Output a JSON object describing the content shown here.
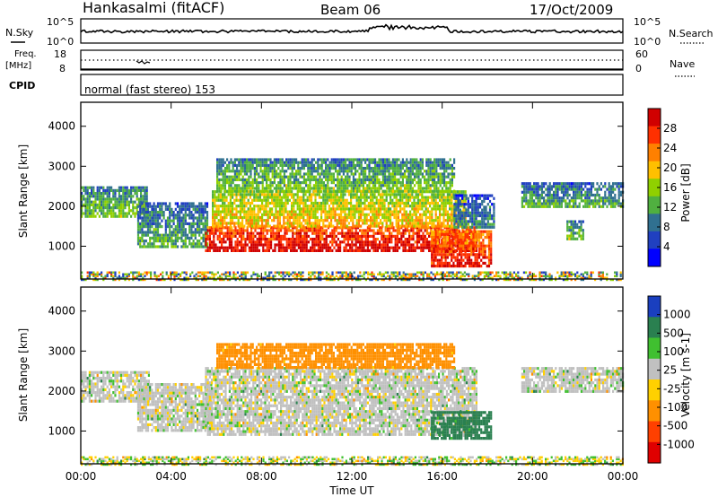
{
  "header": {
    "station": "Hankasalmi (fitACF)",
    "beam": "Beam 06",
    "date": "17/Oct/2009"
  },
  "noise_panel": {
    "left_label": "N.Sky",
    "right_label": "N.Search",
    "tick_top": "10^5",
    "tick_bottom": "10^0"
  },
  "freq_panel": {
    "label_line1": "Freq.",
    "label_line2": "[MHz]",
    "left_ticks": [
      "18",
      "8"
    ],
    "right_ticks": [
      "60",
      "0"
    ],
    "right_label": "Nave"
  },
  "cpid_panel": {
    "label": "CPID",
    "text": "normal (fast stereo) 153"
  },
  "axes": {
    "xlabel": "Time UT",
    "x_ticks": [
      "00:00",
      "04:00",
      "08:00",
      "12:00",
      "16:00",
      "20:00",
      "00:00"
    ],
    "ylabel": "Slant Range [km]",
    "y_ticks": [
      "4000",
      "3000",
      "2000",
      "1000"
    ]
  },
  "power_colorbar": {
    "label": "Power [dB]",
    "ticks": [
      "28",
      "24",
      "20",
      "16",
      "12",
      "8",
      "4"
    ],
    "colors": [
      "#d00000",
      "#ff3000",
      "#ff8000",
      "#ffc000",
      "#90d000",
      "#50b040",
      "#307090",
      "#2040c0",
      "#0000ff"
    ]
  },
  "velocity_colorbar": {
    "label": "Velocity [m s-1]",
    "ticks": [
      "1000",
      "500",
      "100",
      "25",
      "-25",
      "-100",
      "-500",
      "-1000"
    ],
    "colors": [
      "#1a3fbf",
      "#2a8050",
      "#40c030",
      "#c0c0c0",
      "#ffd000",
      "#ff9000",
      "#ff4000",
      "#e00000"
    ]
  },
  "chart_data": [
    {
      "type": "heatmap",
      "title": "Power",
      "xlabel": "Time UT",
      "ylabel": "Slant Range [km]",
      "xlim": [
        "00:00",
        "24:00"
      ],
      "ylim": [
        180,
        4600
      ],
      "colorbar": {
        "label": "Power [dB]",
        "range": [
          0,
          32
        ]
      },
      "regions": [
        {
          "t_start": 0.0,
          "t_end": 2.9,
          "r_min": 1750,
          "r_max": 2500,
          "value": 12
        },
        {
          "t_start": 2.5,
          "t_end": 5.6,
          "r_min": 1000,
          "r_max": 2100,
          "value": 10
        },
        {
          "t_start": 5.5,
          "t_end": 17.5,
          "r_min": 900,
          "r_max": 1500,
          "value": 28
        },
        {
          "t_start": 5.8,
          "t_end": 17.0,
          "r_min": 1500,
          "r_max": 2400,
          "value": 18
        },
        {
          "t_start": 6.0,
          "t_end": 16.5,
          "r_min": 2400,
          "r_max": 3200,
          "value": 12
        },
        {
          "t_start": 15.5,
          "t_end": 18.2,
          "r_min": 500,
          "r_max": 1400,
          "value": 26
        },
        {
          "t_start": 16.5,
          "t_end": 18.3,
          "r_min": 1500,
          "r_max": 2300,
          "value": 8
        },
        {
          "t_start": 19.5,
          "t_end": 24.0,
          "r_min": 2000,
          "r_max": 2600,
          "value": 10
        },
        {
          "t_start": 21.5,
          "t_end": 22.2,
          "r_min": 1150,
          "r_max": 1650,
          "value": 12
        }
      ]
    },
    {
      "type": "heatmap",
      "title": "Velocity",
      "xlabel": "Time UT",
      "ylabel": "Slant Range [km]",
      "xlim": [
        "00:00",
        "24:00"
      ],
      "ylim": [
        180,
        4600
      ],
      "colorbar": {
        "label": "Velocity [m s-1]",
        "range": [
          -1000,
          1000
        ]
      },
      "regions": [
        {
          "t_start": 0.0,
          "t_end": 3.0,
          "r_min": 1750,
          "r_max": 2500,
          "value": 0
        },
        {
          "t_start": 2.5,
          "t_end": 5.8,
          "r_min": 1000,
          "r_max": 2200,
          "value": 0
        },
        {
          "t_start": 5.5,
          "t_end": 17.5,
          "r_min": 900,
          "r_max": 2600,
          "value": 0
        },
        {
          "t_start": 6.0,
          "t_end": 16.5,
          "r_min": 2600,
          "r_max": 3200,
          "value": -200
        },
        {
          "t_start": 15.5,
          "t_end": 18.2,
          "r_min": 800,
          "r_max": 1500,
          "value": 150
        },
        {
          "t_start": 19.5,
          "t_end": 24.0,
          "r_min": 2000,
          "r_max": 2600,
          "value": 0
        }
      ]
    }
  ]
}
